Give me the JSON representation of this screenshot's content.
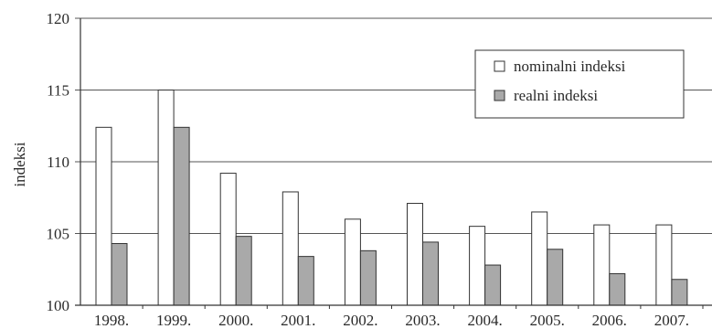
{
  "chart_data": {
    "type": "bar",
    "ylabel": "indeksi",
    "xlabel": "",
    "ylim": [
      100,
      120
    ],
    "yticks": [
      100,
      105,
      110,
      115,
      120
    ],
    "grid": true,
    "legend_position": "top-right",
    "categories": [
      "1998.",
      "1999.",
      "2000.",
      "2001.",
      "2002.",
      "2003.",
      "2004.",
      "2005.",
      "2006.",
      "2007."
    ],
    "series": [
      {
        "name": "nominalni indeksi",
        "color": "#ffffff",
        "values": [
          112.4,
          115.0,
          109.2,
          107.9,
          106.0,
          107.1,
          105.5,
          106.5,
          105.6,
          105.6
        ]
      },
      {
        "name": "realni indeksi",
        "color": "#a9a9a9",
        "values": [
          104.3,
          112.4,
          104.8,
          103.4,
          103.8,
          104.4,
          102.8,
          103.9,
          102.2,
          101.8
        ]
      }
    ]
  }
}
